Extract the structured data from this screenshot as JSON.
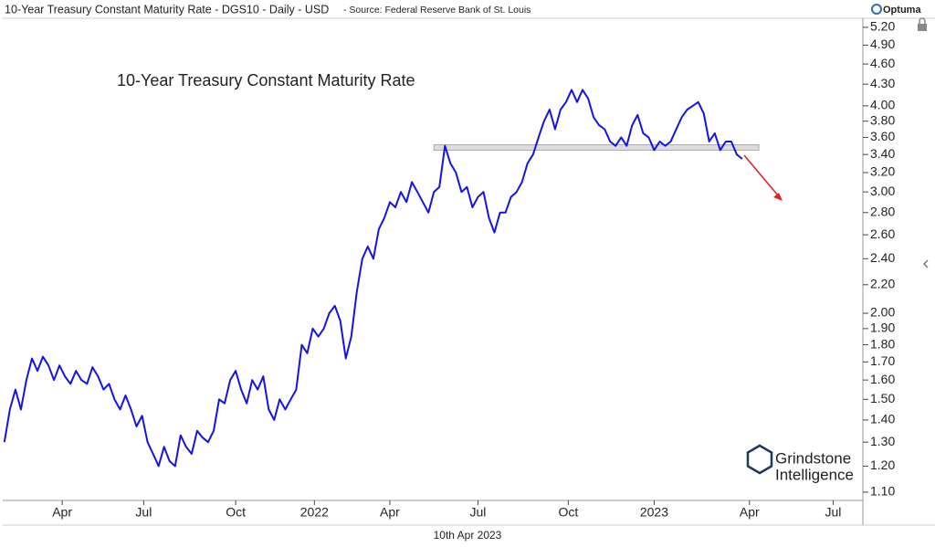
{
  "header": "10-Year Treasury Constant Maturity Rate - DGS10 - Daily - USD",
  "source": "- Source: Federal Reserve Bank of St. Louis",
  "brand": "Optuma",
  "date_label": "10th Apr 2023",
  "watermark_lines": [
    "Grindstone",
    "Intelligence"
  ],
  "chart_data": {
    "type": "line",
    "title": "10-Year Treasury Constant Maturity Rate",
    "color": "#1414e6",
    "log_scale": true,
    "values": [
      1.3,
      1.45,
      1.55,
      1.45,
      1.6,
      1.72,
      1.65,
      1.73,
      1.68,
      1.6,
      1.68,
      1.62,
      1.58,
      1.65,
      1.6,
      1.58,
      1.67,
      1.62,
      1.55,
      1.58,
      1.5,
      1.45,
      1.52,
      1.45,
      1.37,
      1.42,
      1.3,
      1.25,
      1.2,
      1.28,
      1.22,
      1.2,
      1.33,
      1.28,
      1.25,
      1.35,
      1.32,
      1.3,
      1.35,
      1.5,
      1.48,
      1.6,
      1.65,
      1.55,
      1.48,
      1.6,
      1.55,
      1.62,
      1.45,
      1.4,
      1.5,
      1.45,
      1.5,
      1.55,
      1.8,
      1.75,
      1.9,
      1.85,
      1.9,
      2.0,
      2.05,
      1.95,
      1.72,
      1.85,
      2.15,
      2.4,
      2.5,
      2.4,
      2.65,
      2.75,
      2.9,
      2.85,
      3.0,
      2.9,
      3.1,
      3.0,
      2.9,
      2.8,
      3.0,
      3.05,
      3.5,
      3.3,
      3.2,
      3.0,
      3.05,
      2.85,
      2.95,
      3.0,
      2.75,
      2.62,
      2.8,
      2.8,
      2.95,
      3.0,
      3.1,
      3.3,
      3.4,
      3.6,
      3.8,
      3.95,
      3.7,
      3.95,
      4.05,
      4.22,
      4.05,
      4.22,
      4.1,
      3.85,
      3.75,
      3.7,
      3.55,
      3.5,
      3.6,
      3.5,
      3.75,
      3.88,
      3.65,
      3.6,
      3.45,
      3.55,
      3.5,
      3.55,
      3.7,
      3.85,
      3.95,
      4.0,
      4.05,
      3.9,
      3.55,
      3.65,
      3.45,
      3.55,
      3.55,
      3.4,
      3.35
    ],
    "xlim": [
      -0.3,
      155.9
    ],
    "xticks": [
      {
        "value": 10.5,
        "label": "Apr"
      },
      {
        "value": 25.3,
        "label": "Jul"
      },
      {
        "value": 42,
        "label": "Oct"
      },
      {
        "value": 56.3,
        "label": "2022"
      },
      {
        "value": 70,
        "label": "Apr"
      },
      {
        "value": 86,
        "label": "Jul"
      },
      {
        "value": 102.4,
        "label": "Oct"
      },
      {
        "value": 118,
        "label": "2023"
      },
      {
        "value": 135.3,
        "label": "Apr"
      },
      {
        "value": 150.5,
        "label": "Jul"
      }
    ],
    "ylim": [
      1.07,
      5.36
    ],
    "yticks": [
      {
        "value": 5.2,
        "label": "5.20"
      },
      {
        "value": 4.9,
        "label": "4.90"
      },
      {
        "value": 4.6,
        "label": "4.60"
      },
      {
        "value": 4.3,
        "label": "4.30"
      },
      {
        "value": 4.0,
        "label": "4.00"
      },
      {
        "value": 3.8,
        "label": "3.80"
      },
      {
        "value": 3.6,
        "label": "3.60"
      },
      {
        "value": 3.4,
        "label": "3.40"
      },
      {
        "value": 3.2,
        "label": "3.20"
      },
      {
        "value": 3.0,
        "label": "3.00"
      },
      {
        "value": 2.8,
        "label": "2.80"
      },
      {
        "value": 2.6,
        "label": "2.60"
      },
      {
        "value": 2.4,
        "label": "2.40"
      },
      {
        "value": 2.2,
        "label": "2.20"
      },
      {
        "value": 2.0,
        "label": "2.00"
      },
      {
        "value": 1.9,
        "label": "1.90"
      },
      {
        "value": 1.8,
        "label": "1.80"
      },
      {
        "value": 1.7,
        "label": "1.70"
      },
      {
        "value": 1.6,
        "label": "1.60"
      },
      {
        "value": 1.5,
        "label": "1.50"
      },
      {
        "value": 1.4,
        "label": "1.40"
      },
      {
        "value": 1.3,
        "label": "1.30"
      },
      {
        "value": 1.2,
        "label": "1.20"
      },
      {
        "value": 1.1,
        "label": "1.10"
      }
    ],
    "level_band": {
      "value": 3.48,
      "xrange": [
        78,
        137
      ]
    }
  }
}
